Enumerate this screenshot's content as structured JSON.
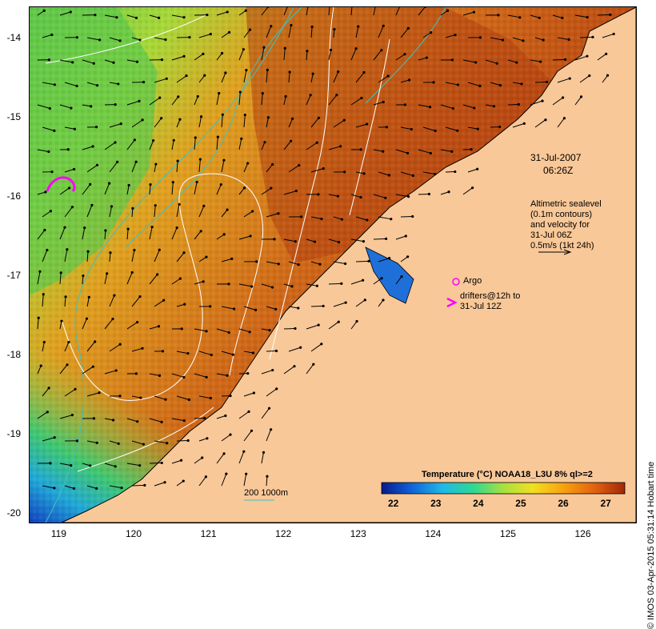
{
  "map": {
    "lat_ticks": [
      "-14",
      "-15",
      "-16",
      "-17",
      "-18",
      "-19",
      "-20"
    ],
    "lon_ticks": [
      "119",
      "120",
      "121",
      "122",
      "123",
      "124",
      "125",
      "126"
    ],
    "lat_range": [
      -20.1,
      -13.6
    ],
    "lon_range": [
      118.6,
      126.7
    ]
  },
  "annotations": {
    "date": "31-Jul-2007",
    "time": "06:26Z",
    "altimetry": [
      "Altimetric sealevel",
      "(0.1m contours)",
      "and velocity for",
      "31-Jul 06Z",
      "0.5m/s (1kt 24h)"
    ],
    "argo": "Argo",
    "drifters": [
      "drifters@12h to",
      "31-Jul 12Z"
    ],
    "depth_legend": "200  1000m"
  },
  "colorbar": {
    "title": "Temperature (°C) NOAA18_L3U 8% ql>=2",
    "ticks": [
      "22",
      "23",
      "24",
      "25",
      "26",
      "27"
    ],
    "colors": [
      "#0a1a8a",
      "#1060d8",
      "#20b8e8",
      "#30d890",
      "#a8e040",
      "#f0e020",
      "#f8a010",
      "#e06010",
      "#a02808"
    ]
  },
  "copyright": "© IMOS 03-Apr-2015 05:31:14 Hobart time",
  "colors": {
    "land": "#f9c898",
    "contour": "#ffffff",
    "bathymetry": "#40c0c0",
    "drifter": "#ff00ff"
  }
}
